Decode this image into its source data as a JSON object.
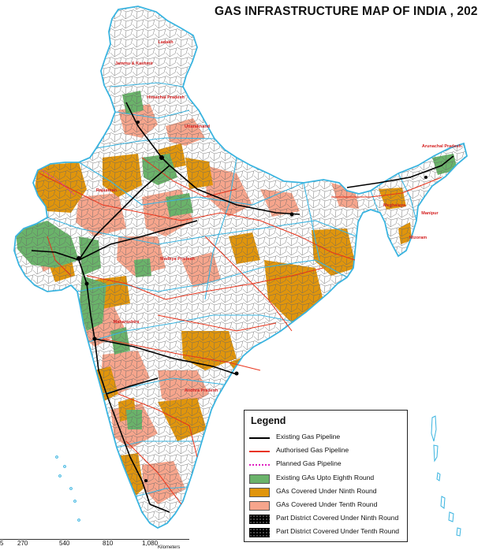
{
  "title": "GAS INFRASTRUCTURE MAP OF INDIA , 202",
  "state_labels": [
    {
      "name": "Ladakh"
    },
    {
      "name": "Jammu & Kashmir"
    },
    {
      "name": "Himachal Pradesh"
    },
    {
      "name": "Uttarakhand"
    },
    {
      "name": "Rajasthan"
    },
    {
      "name": "Madhya Pradesh"
    },
    {
      "name": "Maharashtra"
    },
    {
      "name": "Andhra Pradesh"
    },
    {
      "name": "Arunachal Pradesh"
    },
    {
      "name": "Meghalaya"
    },
    {
      "name": "Manipur"
    },
    {
      "name": "Mizoram"
    }
  ],
  "legend": {
    "title": "Legend",
    "items": [
      {
        "label": "Existing Gas Pipeline",
        "kind": "line",
        "color": "#000000"
      },
      {
        "label": "Authorised Gas Pipeline",
        "kind": "line",
        "color": "#e8341c"
      },
      {
        "label": "Planned Gas Pipeline",
        "kind": "dotted",
        "color": "#e020c0"
      },
      {
        "label": "Existing GAs Upto Eighth Round",
        "kind": "fill",
        "color": "#6ab36a"
      },
      {
        "label": "GAs Covered Under Ninth Round",
        "kind": "fill",
        "color": "#e0950c"
      },
      {
        "label": "GAs Covered Under Tenth Round",
        "kind": "fill",
        "color": "#f6a58c"
      },
      {
        "label": "Part District Covered Under Ninth Round",
        "kind": "black",
        "color": "#000000"
      },
      {
        "label": "Part District Covered Under Tenth Round",
        "kind": "black",
        "color": "#000000"
      }
    ]
  },
  "scale": {
    "ticks": [
      "5",
      "270",
      "540",
      "810",
      "1,080"
    ],
    "unit": "Kilometers"
  },
  "colors": {
    "boundary_outer": "#3ab4e0",
    "district_line": "#555555",
    "eighth_round": "#6ab36a",
    "ninth_round": "#e0950c",
    "tenth_round": "#f6a58c"
  }
}
